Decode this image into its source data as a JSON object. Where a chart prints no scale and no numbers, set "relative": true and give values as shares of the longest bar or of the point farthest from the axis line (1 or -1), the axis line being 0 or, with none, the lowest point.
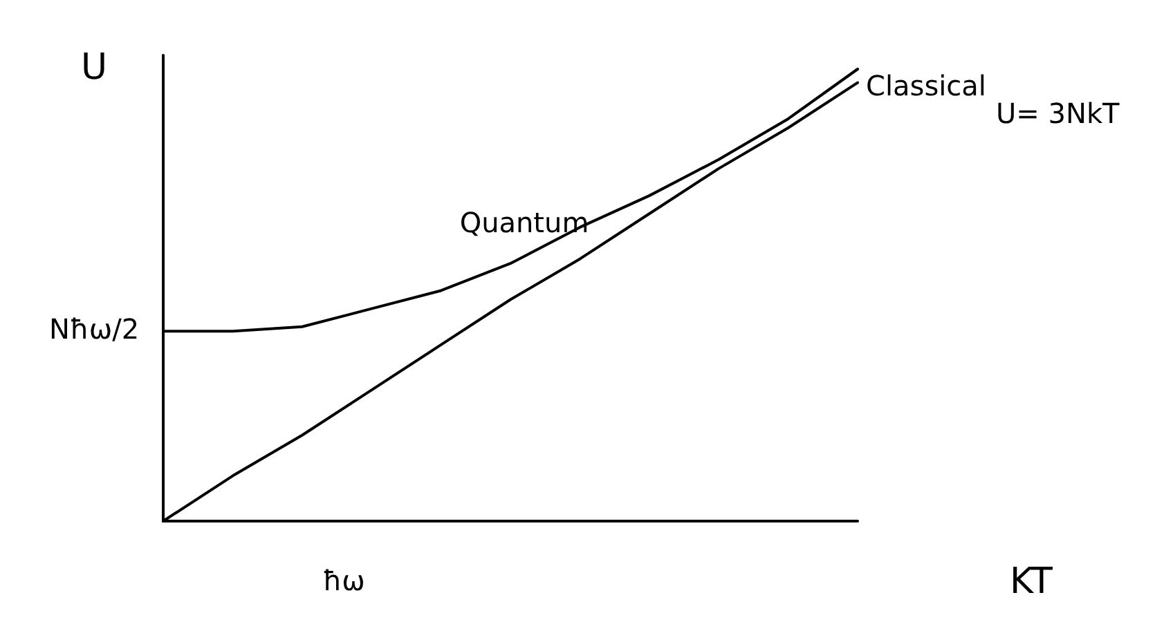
{
  "chart_data": {
    "type": "line",
    "relative": true,
    "xlabel": "KT",
    "ylabel": "U",
    "categories": [
      null,
      null,
      null,
      null,
      null,
      null,
      null,
      null,
      null,
      null,
      null
    ],
    "series": [
      {
        "name": "Quantum",
        "color": "#000000",
        "values": [
          0.42,
          0.42,
          0.43,
          0.47,
          0.51,
          0.57,
          0.65,
          0.72,
          0.8,
          0.89,
          1.0
        ]
      },
      {
        "name": "Classical",
        "color": "#000000",
        "values": [
          0,
          0.1,
          0.19,
          0.29,
          0.39,
          0.49,
          0.58,
          0.68,
          0.78,
          0.87,
          0.97
        ]
      }
    ],
    "annotations": [
      "Nħω/2",
      "ħω",
      "U= 3NkT"
    ],
    "legend": false,
    "grid": false,
    "marker": "none",
    "line_style": "solid"
  }
}
